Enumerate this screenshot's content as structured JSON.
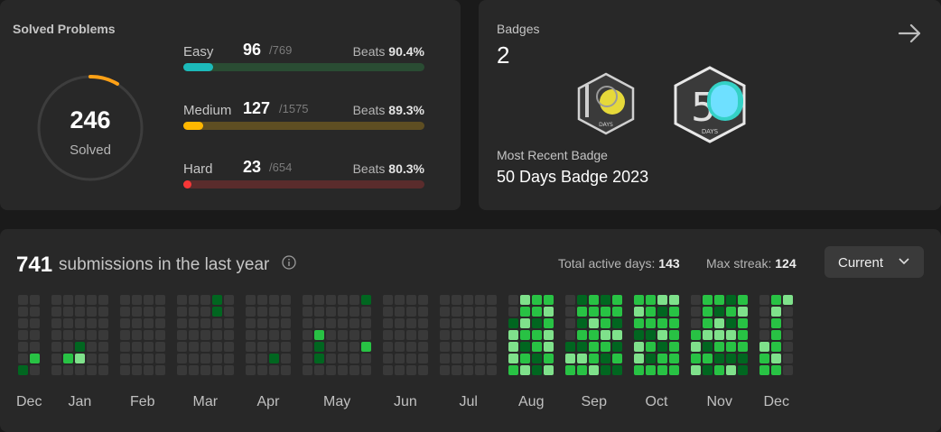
{
  "solved": {
    "title": "Solved Problems",
    "total": "246",
    "total_label": "Solved",
    "difficulties": [
      {
        "label": "Easy",
        "count": "96",
        "total": "/769",
        "beats_label": "Beats",
        "beats": "90.4%",
        "fill_fraction": 0.125,
        "color": "#1cbaba",
        "track": "#2a4c33"
      },
      {
        "label": "Medium",
        "count": "127",
        "total": "/1575",
        "beats_label": "Beats",
        "beats": "89.3%",
        "fill_fraction": 0.081,
        "color": "#ffb700",
        "track": "#5e4e22"
      },
      {
        "label": "Hard",
        "count": "23",
        "total": "/654",
        "beats_label": "Beats",
        "beats": "80.3%",
        "fill_fraction": 0.035,
        "color": "#f63737",
        "track": "#5a2c2c"
      }
    ]
  },
  "badges": {
    "title": "Badges",
    "count": "2",
    "items": [
      {
        "name": "100 Days Badge",
        "digits": "1",
        "sub": "DAYS"
      },
      {
        "name": "50 Days Badge 2023",
        "digits": "5",
        "sub": "DAYS"
      }
    ],
    "recent_label": "Most Recent Badge",
    "recent_name": "50 Days Badge 2023"
  },
  "heatmap": {
    "total": "741",
    "text": "submissions in the last year",
    "active_label": "Total active days:",
    "active_value": "143",
    "streak_label": "Max streak:",
    "streak_value": "124",
    "select_value": "Current",
    "colors": {
      "empty": "#393939",
      "l1": "#016620",
      "l2": "#28c244",
      "l3": "#7fe18b"
    },
    "months": [
      {
        "label": "Dec",
        "weeks": [
          "0000001",
          "0000020"
        ]
      },
      {
        "label": "Jan",
        "weeks": [
          "0000000",
          "0000020",
          "0000130",
          "0000000",
          "0000000"
        ]
      },
      {
        "label": "Feb",
        "weeks": [
          "0000000",
          "0000000",
          "0000000",
          "0000000"
        ]
      },
      {
        "label": "Mar",
        "weeks": [
          "0000000",
          "0000000",
          "0000000",
          "1100000",
          "0000000"
        ]
      },
      {
        "label": "Apr",
        "weeks": [
          "0000000",
          "0000000",
          "0000010",
          "0000000"
        ]
      },
      {
        "label": "May",
        "weeks": [
          "0000000",
          "0002110",
          "0000000",
          "0000000",
          "0000000",
          "1000200"
        ]
      },
      {
        "label": "Jun",
        "weeks": [
          "0000000",
          "0000000",
          "0000000",
          "0000000"
        ]
      },
      {
        "label": "Jul",
        "weeks": [
          "0000000",
          "0000000",
          "0000000",
          "0000000",
          "0000000"
        ]
      },
      {
        "label": "Aug",
        "weeks": [
          "0013332",
          "3232123",
          "2212211",
          "2323323"
        ]
      },
      {
        "label": "Sep",
        "weeks": [
          "0000132",
          "1212132",
          "2232223",
          "1223211",
          "2213121"
        ]
      },
      {
        "label": "Oct",
        "weeks": [
          "2321332",
          "2221212",
          "3123122",
          "3222222"
        ]
      },
      {
        "label": "Nov",
        "weeks": [
          "0002323",
          "2223121",
          "2133212",
          "1213213",
          "2322211"
        ]
      },
      {
        "label": "Dec",
        "weeks": [
          "0000322",
          "2322232",
          "3000000"
        ]
      }
    ]
  }
}
